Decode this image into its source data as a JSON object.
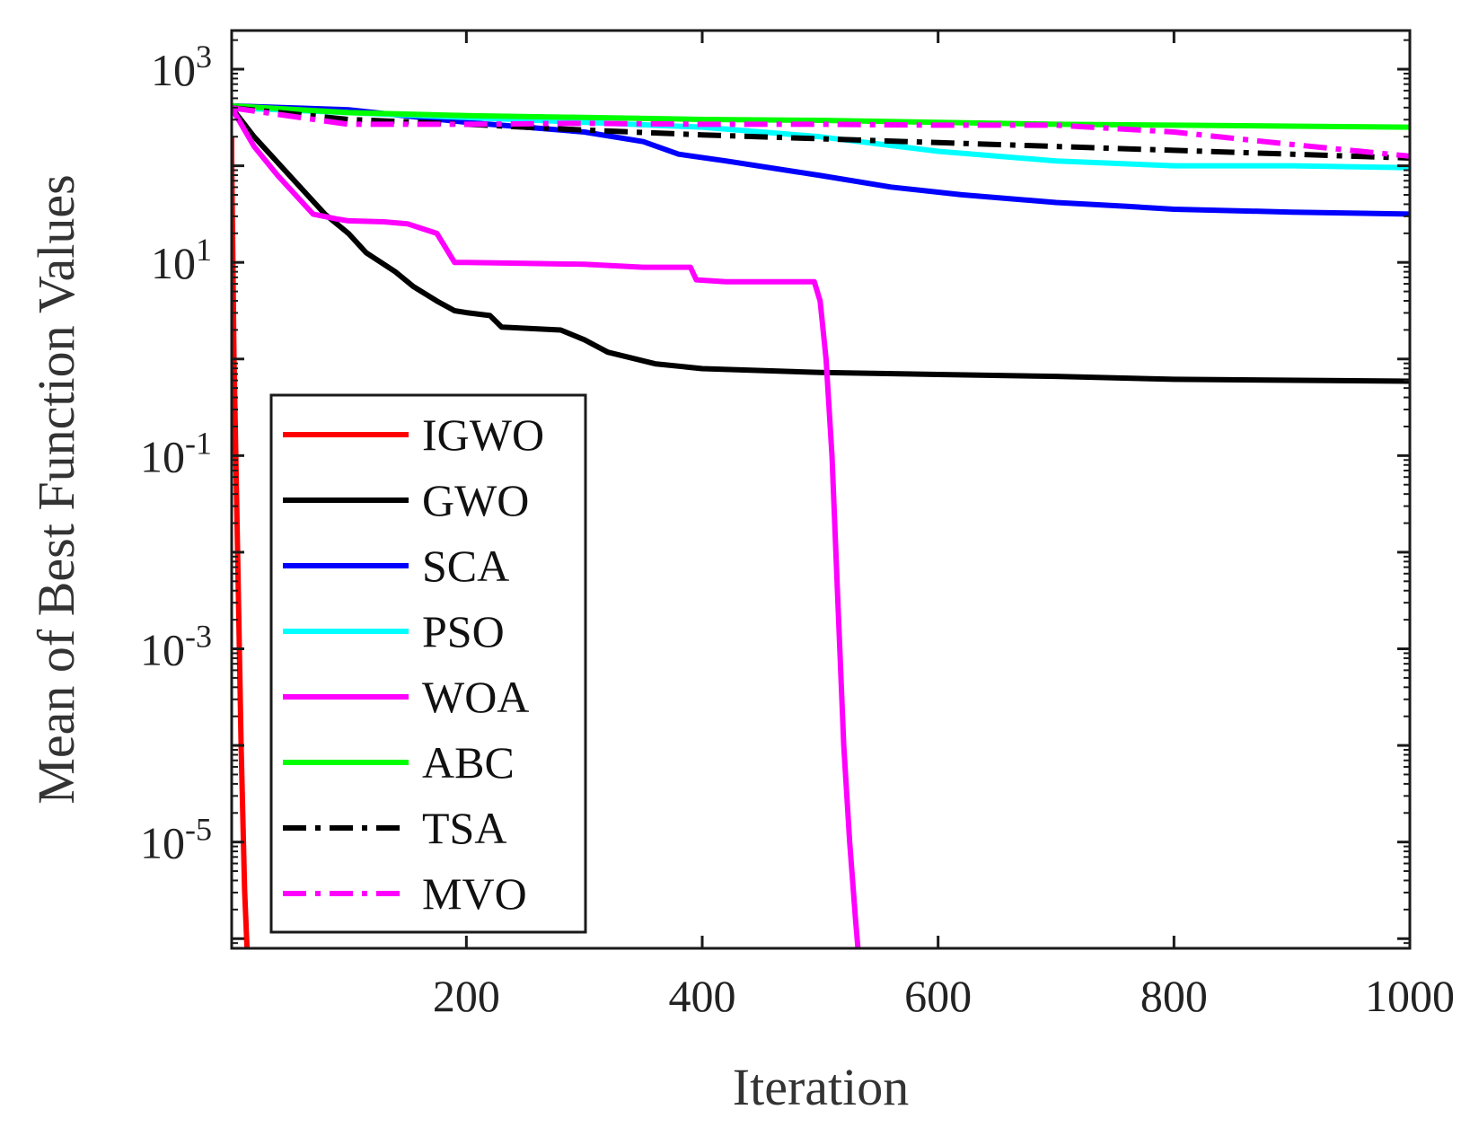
{
  "chart_data": {
    "type": "line",
    "title": "",
    "xlabel": "Iteration",
    "ylabel": "Mean of Best Function Values",
    "xscale": "linear",
    "yscale": "log",
    "xlim": [
      1,
      1000
    ],
    "ylim_log10": [
      -6.1,
      3.4
    ],
    "xticks": [
      200,
      400,
      600,
      800,
      1000
    ],
    "xtick_labels": [
      "200",
      "400",
      "600",
      "800",
      "1000"
    ],
    "yticks_log10": [
      -5,
      -3,
      -1,
      1,
      3
    ],
    "ytick_labels": [
      {
        "base": "10",
        "exp": "-5"
      },
      {
        "base": "10",
        "exp": "-3"
      },
      {
        "base": "10",
        "exp": "-1"
      },
      {
        "base": "10",
        "exp": "1"
      },
      {
        "base": "10",
        "exp": "3"
      }
    ],
    "grid": false,
    "legend_position": "bottom-left",
    "series": [
      {
        "name": "IGWO",
        "color": "#ff0000",
        "dash": "solid",
        "x": [
          1,
          1,
          3,
          6,
          9,
          12,
          14,
          16
        ],
        "log10y": [
          2.3,
          2.1,
          0.0,
          -2.0,
          -4.0,
          -5.5,
          -6.1,
          -6.1
        ]
      },
      {
        "name": "GWO",
        "color": "#000000",
        "dash": "solid",
        "x": [
          1,
          20,
          50,
          80,
          100,
          115,
          140,
          155,
          175,
          190,
          200,
          220,
          230,
          280,
          290,
          300,
          320,
          360,
          400,
          500,
          600,
          700,
          800,
          1000
        ],
        "log10y": [
          2.6,
          2.3,
          1.9,
          1.5,
          1.3,
          1.1,
          0.9,
          0.75,
          0.6,
          0.5,
          0.48,
          0.45,
          0.33,
          0.3,
          0.25,
          0.2,
          0.07,
          -0.05,
          -0.1,
          -0.14,
          -0.16,
          -0.18,
          -0.21,
          -0.23
        ]
      },
      {
        "name": "SCA",
        "color": "#0000ff",
        "dash": "solid",
        "x": [
          1,
          100,
          200,
          300,
          350,
          380,
          420,
          500,
          560,
          620,
          700,
          760,
          800,
          900,
          1000
        ],
        "log10y": [
          2.62,
          2.58,
          2.45,
          2.35,
          2.25,
          2.12,
          2.05,
          1.9,
          1.78,
          1.7,
          1.62,
          1.58,
          1.55,
          1.52,
          1.5
        ]
      },
      {
        "name": "PSO",
        "color": "#00ffff",
        "dash": "solid",
        "x": [
          1,
          200,
          400,
          500,
          600,
          700,
          800,
          900,
          1000
        ],
        "log10y": [
          2.6,
          2.5,
          2.4,
          2.3,
          2.15,
          2.05,
          2.0,
          2.0,
          1.98
        ]
      },
      {
        "name": "WOA",
        "color": "#ff00ff",
        "dash": "solid",
        "x": [
          1,
          20,
          40,
          70,
          90,
          100,
          130,
          150,
          175,
          190,
          200,
          250,
          300,
          350,
          390,
          395,
          420,
          450,
          495,
          500,
          505,
          510,
          515,
          520,
          525,
          530,
          532
        ],
        "log10y": [
          2.6,
          2.2,
          1.9,
          1.5,
          1.45,
          1.43,
          1.42,
          1.4,
          1.3,
          1.0,
          1.0,
          0.99,
          0.98,
          0.95,
          0.95,
          0.82,
          0.8,
          0.8,
          0.8,
          0.6,
          0.0,
          -1.0,
          -2.5,
          -4.0,
          -5.0,
          -5.8,
          -6.1
        ]
      },
      {
        "name": "ABC",
        "color": "#00ff00",
        "dash": "solid",
        "x": [
          1,
          100,
          200,
          300,
          400,
          500,
          600,
          700,
          800,
          900,
          1000
        ],
        "log10y": [
          2.62,
          2.55,
          2.52,
          2.5,
          2.48,
          2.47,
          2.45,
          2.43,
          2.42,
          2.41,
          2.4
        ]
      },
      {
        "name": "TSA",
        "color": "#000000",
        "dash": "dashdot",
        "x": [
          1,
          100,
          200,
          300,
          400,
          500,
          600,
          700,
          800,
          900,
          1000
        ],
        "log10y": [
          2.6,
          2.48,
          2.43,
          2.37,
          2.32,
          2.28,
          2.24,
          2.2,
          2.16,
          2.12,
          2.08
        ]
      },
      {
        "name": "MVO",
        "color": "#ff00ff",
        "dash": "dashdot",
        "x": [
          1,
          100,
          200,
          300,
          400,
          500,
          600,
          700,
          800,
          900,
          1000
        ],
        "log10y": [
          2.6,
          2.43,
          2.43,
          2.44,
          2.43,
          2.43,
          2.42,
          2.42,
          2.35,
          2.22,
          2.1
        ]
      }
    ]
  }
}
